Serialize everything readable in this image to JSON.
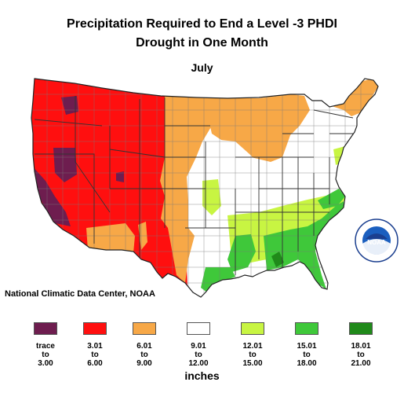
{
  "title": {
    "line1": "Precipitation Required to End a Level -3 PHDI",
    "line2": "Drought in One Month",
    "month": "July"
  },
  "credit": "National Climatic Data Center, NOAA",
  "logo_text": "NOAA",
  "legend": {
    "units": "inches",
    "items": [
      {
        "color": "#6e1d4f",
        "from": "trace",
        "to": "to",
        "end": "3.00"
      },
      {
        "color": "#ff0f0f",
        "from": "3.01",
        "to": "to",
        "end": "6.00"
      },
      {
        "color": "#f7a847",
        "from": "6.01",
        "to": "to",
        "end": "9.00"
      },
      {
        "color": "#ffffff",
        "from": "9.01",
        "to": "to",
        "end": "12.00"
      },
      {
        "color": "#c8f542",
        "from": "12.01",
        "to": "to",
        "end": "15.00"
      },
      {
        "color": "#3fc83a",
        "from": "15.01",
        "to": "to",
        "end": "18.00"
      },
      {
        "color": "#208a1a",
        "from": "18.01",
        "to": "to",
        "end": "21.00"
      }
    ]
  }
}
